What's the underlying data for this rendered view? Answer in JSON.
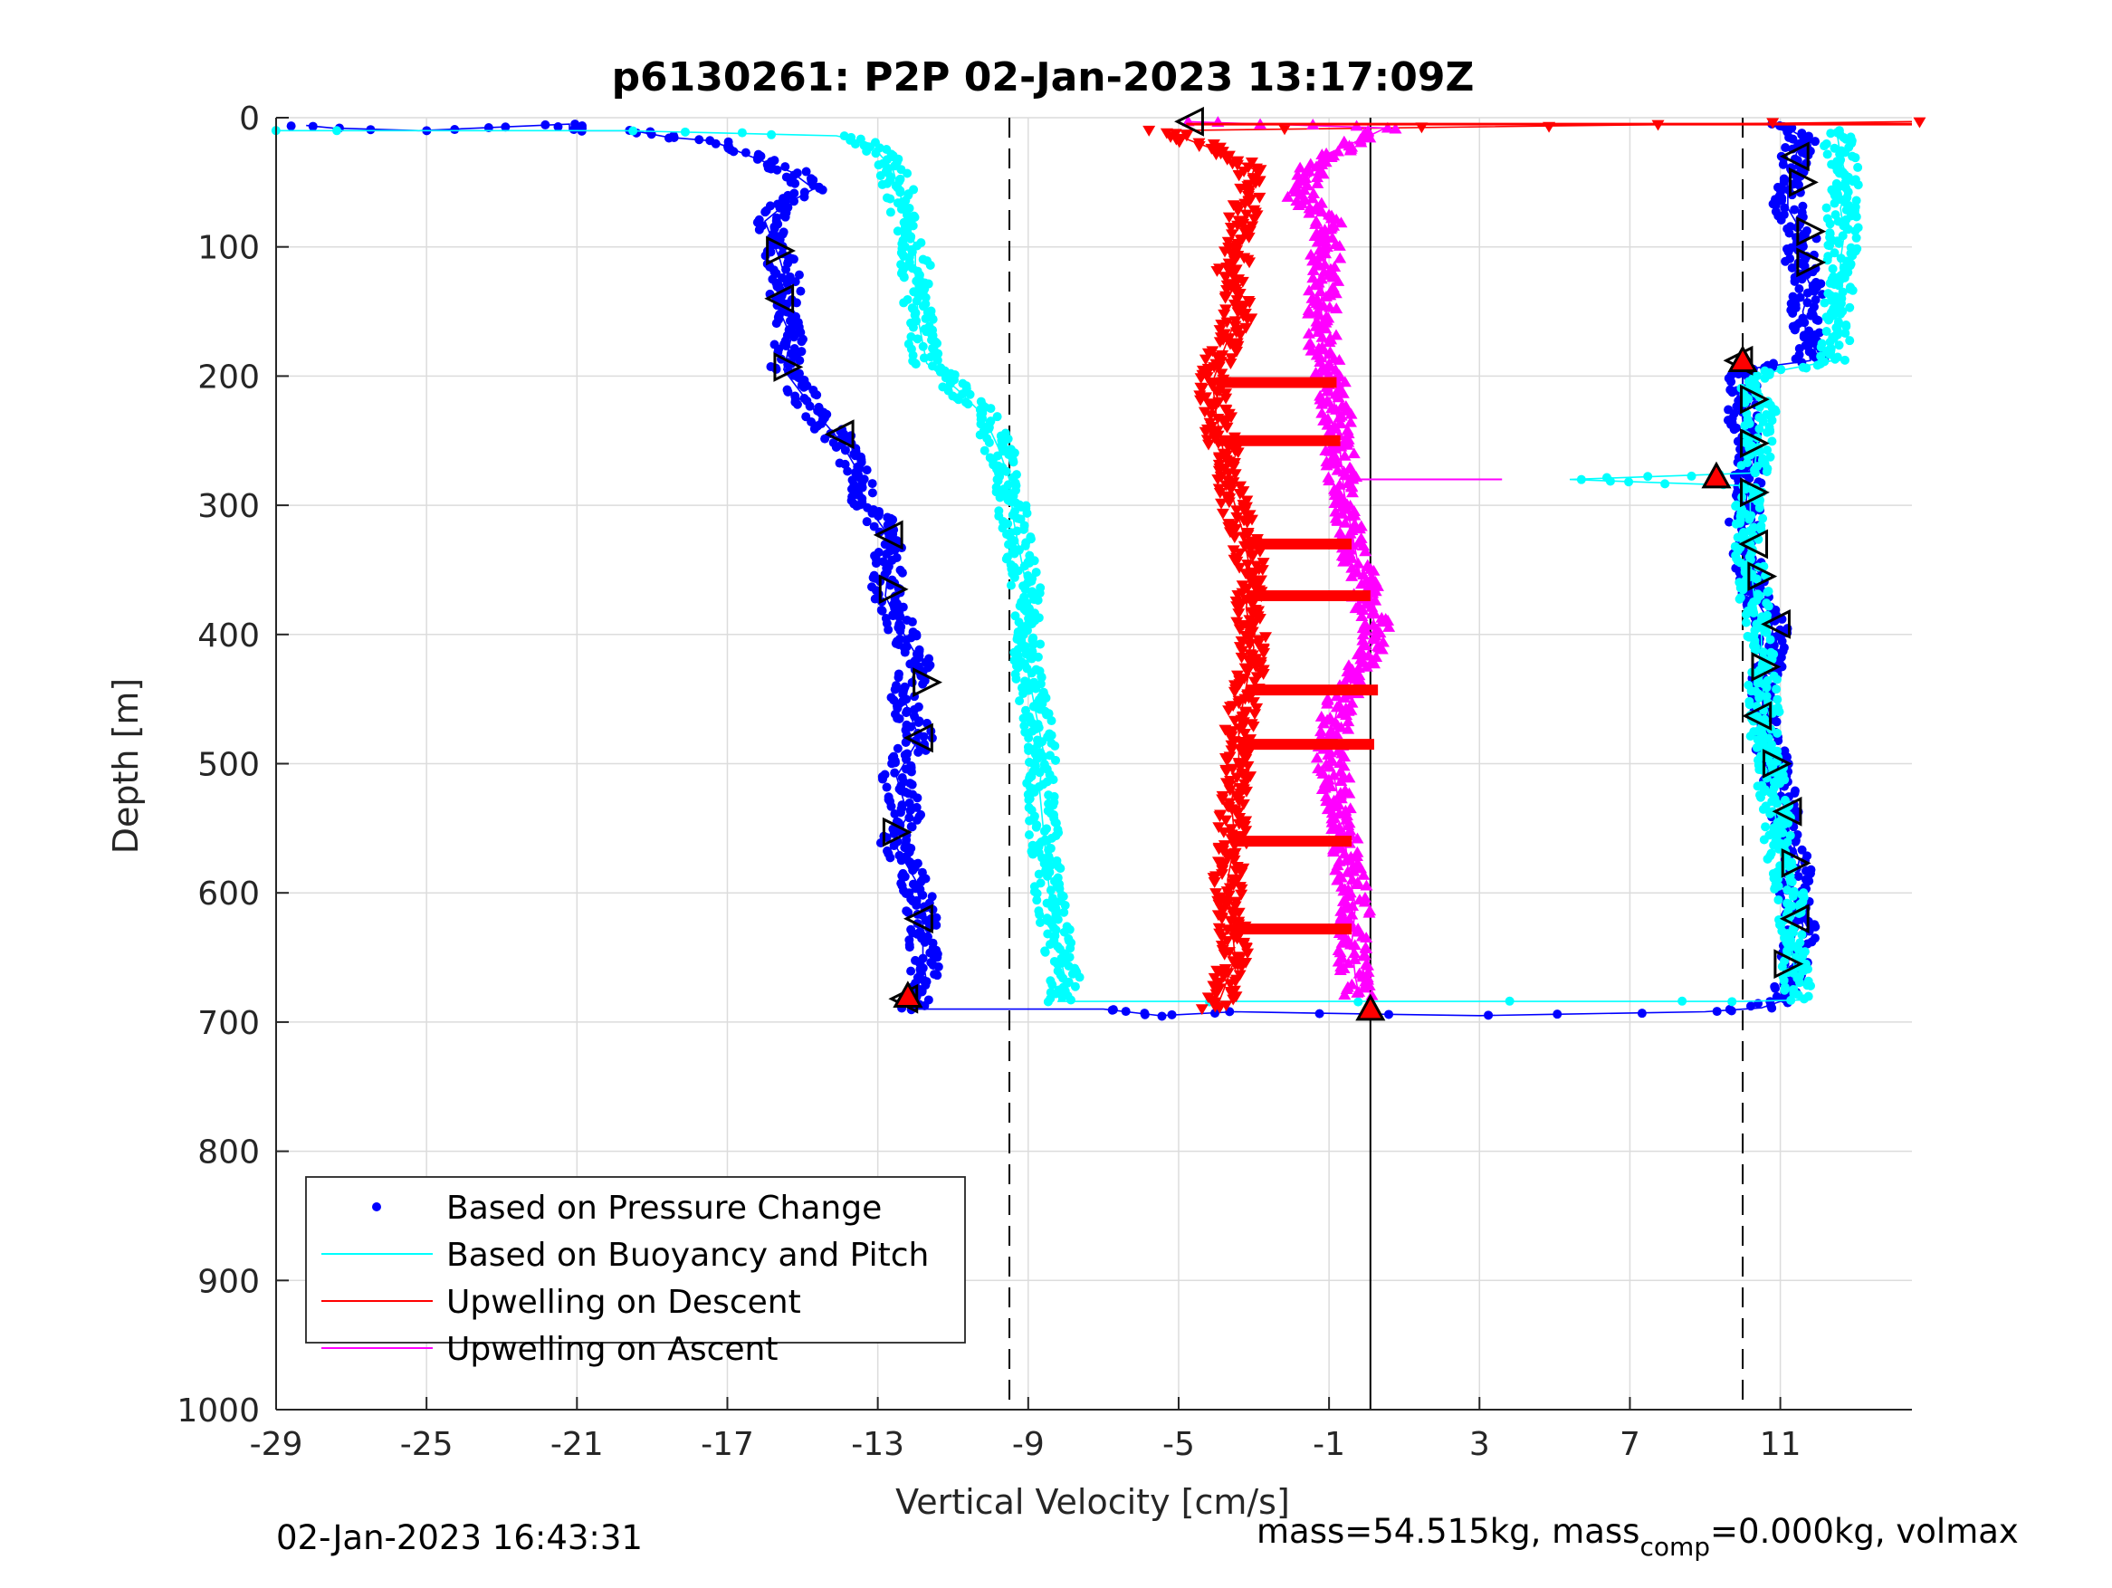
{
  "chart_data": {
    "type": "scatter",
    "title": "p6130261: P2P 02-Jan-2023 13:17:09Z",
    "xlabel": "Vertical Velocity [cm/s]",
    "ylabel": "Depth [m]",
    "xlim": [
      -29,
      14.5
    ],
    "ylim": [
      0,
      1000
    ],
    "y_reversed": true,
    "grid": true,
    "xticks": [
      "-29",
      "-25",
      "-21",
      "-17",
      "-13",
      "-9",
      "-5",
      "-1",
      "3",
      "7",
      "11"
    ],
    "yticks": [
      "0",
      "100",
      "200",
      "300",
      "400",
      "500",
      "600",
      "700",
      "800",
      "900",
      "1000"
    ],
    "legend_position": "bottom-left",
    "legend": [
      {
        "label": "Based on Pressure Change",
        "color": "#0000ff",
        "style": "dot"
      },
      {
        "label": "Based on Buoyancy and Pitch",
        "color": "#00ffff",
        "style": "line"
      },
      {
        "label": "Upwelling on Descent",
        "color": "#ff0000",
        "style": "line"
      },
      {
        "label": "Upwelling on Ascent",
        "color": "#ff00ff",
        "style": "line"
      }
    ],
    "reference_lines": {
      "dashed_x": [
        -9.5,
        10
      ],
      "solid_x": [
        0.1
      ]
    },
    "series": [
      {
        "name": "Based on Pressure Change",
        "color": "#0000ff",
        "points": [
          [
            -28.2,
            6
          ],
          [
            -27.5,
            8
          ],
          [
            -25.2,
            10
          ],
          [
            -21.2,
            5
          ],
          [
            -21.2,
            10
          ],
          [
            -19.5,
            10
          ],
          [
            -18.6,
            15
          ],
          [
            -17.4,
            18
          ],
          [
            -16.8,
            25
          ],
          [
            -16.2,
            32
          ],
          [
            -15.3,
            42
          ],
          [
            -14.7,
            55
          ],
          [
            -15.5,
            68
          ],
          [
            -16.0,
            80
          ],
          [
            -15.8,
            95
          ],
          [
            -15.6,
            110
          ],
          [
            -15.4,
            130
          ],
          [
            -15.6,
            150
          ],
          [
            -15.3,
            170
          ],
          [
            -15.5,
            195
          ],
          [
            -14.6,
            230
          ],
          [
            -14.0,
            250
          ],
          [
            -13.6,
            270
          ],
          [
            -13.4,
            295
          ],
          [
            -12.8,
            320
          ],
          [
            -12.7,
            345
          ],
          [
            -12.8,
            370
          ],
          [
            -12.4,
            395
          ],
          [
            -11.9,
            420
          ],
          [
            -12.3,
            450
          ],
          [
            -11.9,
            480
          ],
          [
            -12.5,
            510
          ],
          [
            -12.2,
            540
          ],
          [
            -12.6,
            560
          ],
          [
            -12.0,
            590
          ],
          [
            -11.8,
            620
          ],
          [
            -11.8,
            650
          ],
          [
            -11.7,
            670
          ],
          [
            -12.2,
            690
          ],
          [
            -7.0,
            690
          ],
          [
            -5.5,
            695
          ],
          [
            -3.5,
            692
          ],
          [
            -1.5,
            693
          ],
          [
            0.5,
            694
          ],
          [
            3.0,
            695
          ],
          [
            5.0,
            694
          ],
          [
            7.0,
            693
          ],
          [
            9.0,
            692
          ],
          [
            10.5,
            689
          ],
          [
            11.0,
            684
          ],
          [
            11.2,
            670
          ],
          [
            11.4,
            650
          ],
          [
            11.6,
            625
          ],
          [
            11.3,
            600
          ],
          [
            11.5,
            575
          ],
          [
            11.2,
            550
          ],
          [
            11.0,
            520
          ],
          [
            10.8,
            495
          ],
          [
            10.6,
            470
          ],
          [
            10.5,
            445
          ],
          [
            10.7,
            420
          ],
          [
            10.8,
            395
          ],
          [
            10.3,
            370
          ],
          [
            10.2,
            345
          ],
          [
            10.0,
            320
          ],
          [
            10.1,
            295
          ],
          [
            10.2,
            270
          ],
          [
            10.0,
            245
          ],
          [
            10.0,
            220
          ],
          [
            10.0,
            195
          ],
          [
            11.8,
            188
          ],
          [
            11.7,
            170
          ],
          [
            11.6,
            150
          ],
          [
            11.8,
            130
          ],
          [
            11.5,
            110
          ],
          [
            11.6,
            90
          ],
          [
            11.2,
            70
          ],
          [
            11.2,
            50
          ],
          [
            11.4,
            30
          ],
          [
            11.6,
            15
          ],
          [
            11.0,
            5
          ]
        ]
      },
      {
        "name": "Based on Buoyancy and Pitch",
        "color": "#00ffff",
        "points": [
          [
            -29.0,
            10
          ],
          [
            -27.7,
            10
          ],
          [
            -19.8,
            10
          ],
          [
            -17.0,
            12
          ],
          [
            -14.1,
            14
          ],
          [
            -13.2,
            20
          ],
          [
            -12.6,
            40
          ],
          [
            -12.3,
            70
          ],
          [
            -12.0,
            100
          ],
          [
            -12.0,
            130
          ],
          [
            -11.9,
            160
          ],
          [
            -11.7,
            190
          ],
          [
            -10.9,
            210
          ],
          [
            -10.2,
            230
          ],
          [
            -9.8,
            255
          ],
          [
            -9.5,
            280
          ],
          [
            -9.4,
            310
          ],
          [
            -9.2,
            340
          ],
          [
            -9.0,
            370
          ],
          [
            -9.1,
            400
          ],
          [
            -9.0,
            430
          ],
          [
            -8.8,
            460
          ],
          [
            -8.6,
            490
          ],
          [
            -8.7,
            520
          ],
          [
            -8.6,
            550
          ],
          [
            -8.5,
            580
          ],
          [
            -8.4,
            610
          ],
          [
            -8.2,
            640
          ],
          [
            -8.0,
            670
          ],
          [
            -8.2,
            684
          ],
          [
            -4.0,
            684
          ],
          [
            0.0,
            684
          ],
          [
            4.0,
            684
          ],
          [
            8.0,
            684
          ],
          [
            10.0,
            684
          ],
          [
            11.5,
            683
          ],
          [
            11.4,
            665
          ],
          [
            11.3,
            640
          ],
          [
            11.3,
            610
          ],
          [
            11.1,
            580
          ],
          [
            10.9,
            550
          ],
          [
            10.8,
            520
          ],
          [
            10.6,
            490
          ],
          [
            10.6,
            460
          ],
          [
            10.5,
            430
          ],
          [
            10.5,
            400
          ],
          [
            10.3,
            370
          ],
          [
            10.2,
            340
          ],
          [
            10.2,
            310
          ],
          [
            10.2,
            285
          ],
          [
            5.4,
            280
          ],
          [
            10.3,
            275
          ],
          [
            10.4,
            250
          ],
          [
            10.5,
            225
          ],
          [
            10.2,
            200
          ],
          [
            12.4,
            188
          ],
          [
            12.5,
            170
          ],
          [
            12.5,
            150
          ],
          [
            12.6,
            130
          ],
          [
            12.6,
            110
          ],
          [
            12.7,
            90
          ],
          [
            12.6,
            70
          ],
          [
            12.8,
            50
          ],
          [
            12.6,
            30
          ],
          [
            12.5,
            10
          ]
        ]
      },
      {
        "name": "Upwelling on Descent",
        "color": "#ff0000",
        "points": [
          [
            14.5,
            3
          ],
          [
            -5.4,
            10
          ],
          [
            -4.0,
            25
          ],
          [
            -3.0,
            40
          ],
          [
            -3.2,
            60
          ],
          [
            -3.3,
            90
          ],
          [
            -3.6,
            120
          ],
          [
            -3.4,
            150
          ],
          [
            -3.8,
            180
          ],
          [
            -4.1,
            205
          ],
          [
            -4.0,
            230
          ],
          [
            -3.8,
            260
          ],
          [
            -3.6,
            290
          ],
          [
            -3.3,
            320
          ],
          [
            -3.1,
            350
          ],
          [
            -3.2,
            380
          ],
          [
            -3.0,
            410
          ],
          [
            -3.2,
            440
          ],
          [
            -3.4,
            470
          ],
          [
            -3.4,
            500
          ],
          [
            -3.6,
            530
          ],
          [
            -3.5,
            560
          ],
          [
            -3.7,
            590
          ],
          [
            -3.6,
            620
          ],
          [
            -3.5,
            650
          ],
          [
            -3.8,
            675
          ],
          [
            -4.0,
            690
          ]
        ]
      },
      {
        "name": "Upwelling on Ascent",
        "color": "#ff00ff",
        "points": [
          [
            -4.8,
            3
          ],
          [
            0.5,
            8
          ],
          [
            0.0,
            15
          ],
          [
            -1.2,
            30
          ],
          [
            -1.5,
            45
          ],
          [
            -1.8,
            60
          ],
          [
            -1.0,
            80
          ],
          [
            -1.1,
            110
          ],
          [
            -1.2,
            140
          ],
          [
            -1.2,
            170
          ],
          [
            -1.0,
            200
          ],
          [
            -0.8,
            230
          ],
          [
            -0.7,
            260
          ],
          [
            -0.6,
            290
          ],
          [
            -0.4,
            320
          ],
          [
            -0.2,
            350
          ],
          [
            0.1,
            380
          ],
          [
            0.3,
            400
          ],
          [
            -0.3,
            430
          ],
          [
            -0.8,
            460
          ],
          [
            -1.0,
            490
          ],
          [
            -0.8,
            520
          ],
          [
            -0.6,
            550
          ],
          [
            -0.5,
            580
          ],
          [
            -0.3,
            610
          ],
          [
            -0.4,
            640
          ],
          [
            -0.3,
            665
          ],
          [
            -0.2,
            680
          ]
        ]
      }
    ],
    "horizontal_segments": [
      {
        "color": "#ff0000",
        "y": 205,
        "x0": -4.0,
        "x1": -0.8
      },
      {
        "color": "#ff0000",
        "y": 250,
        "x0": -3.9,
        "x1": -0.7
      },
      {
        "color": "#ff0000",
        "y": 330,
        "x0": -3.3,
        "x1": -0.4
      },
      {
        "color": "#ff0000",
        "y": 370,
        "x0": -3.2,
        "x1": 0.1
      },
      {
        "color": "#ff0000",
        "y": 443,
        "x0": -3.2,
        "x1": 0.3
      },
      {
        "color": "#ff0000",
        "y": 485,
        "x0": -3.4,
        "x1": 0.2
      },
      {
        "color": "#ff0000",
        "y": 560,
        "x0": -3.5,
        "x1": -0.4
      },
      {
        "color": "#ff0000",
        "y": 628,
        "x0": -3.6,
        "x1": -0.4
      },
      {
        "color": "#ff0000",
        "y": 5,
        "x0": -4.8,
        "x1": 14.5
      },
      {
        "color": "#ff00ff",
        "y": 280,
        "x0": -0.6,
        "x1": 3.6
      }
    ],
    "markers": [
      {
        "x": -15.6,
        "y": 103,
        "dir": "right"
      },
      {
        "x": -15.6,
        "y": 140,
        "dir": "left"
      },
      {
        "x": -15.4,
        "y": 193,
        "dir": "right"
      },
      {
        "x": -14.0,
        "y": 245,
        "dir": "left"
      },
      {
        "x": -12.7,
        "y": 323,
        "dir": "left"
      },
      {
        "x": -12.6,
        "y": 365,
        "dir": "right"
      },
      {
        "x": -11.7,
        "y": 437,
        "dir": "right"
      },
      {
        "x": -11.9,
        "y": 480,
        "dir": "left"
      },
      {
        "x": -12.5,
        "y": 553,
        "dir": "right"
      },
      {
        "x": -11.9,
        "y": 620,
        "dir": "left"
      },
      {
        "x": -4.7,
        "y": 3,
        "dir": "left"
      },
      {
        "x": 11.4,
        "y": 30,
        "dir": "left"
      },
      {
        "x": 11.6,
        "y": 50,
        "dir": "right"
      },
      {
        "x": 11.8,
        "y": 88,
        "dir": "right"
      },
      {
        "x": 11.8,
        "y": 112,
        "dir": "right"
      },
      {
        "x": 10.3,
        "y": 218,
        "dir": "right"
      },
      {
        "x": 10.3,
        "y": 252,
        "dir": "right"
      },
      {
        "x": 10.3,
        "y": 290,
        "dir": "right"
      },
      {
        "x": 10.3,
        "y": 330,
        "dir": "left"
      },
      {
        "x": 10.5,
        "y": 355,
        "dir": "right"
      },
      {
        "x": 10.9,
        "y": 392,
        "dir": "left"
      },
      {
        "x": 10.6,
        "y": 425,
        "dir": "right"
      },
      {
        "x": 10.4,
        "y": 463,
        "dir": "left"
      },
      {
        "x": 10.9,
        "y": 500,
        "dir": "right"
      },
      {
        "x": 11.2,
        "y": 537,
        "dir": "left"
      },
      {
        "x": 11.4,
        "y": 577,
        "dir": "right"
      },
      {
        "x": 11.4,
        "y": 620,
        "dir": "left"
      },
      {
        "x": 11.2,
        "y": 655,
        "dir": "right"
      },
      {
        "x": 9.9,
        "y": 188,
        "dir": "left"
      },
      {
        "x": -12.3,
        "y": 682,
        "dir": "left"
      },
      {
        "x": 9.3,
        "y": 278,
        "dir": "up",
        "color": "#ff0000"
      },
      {
        "x": 10.0,
        "y": 188,
        "dir": "up",
        "color": "#ff0000"
      },
      {
        "x": -12.2,
        "y": 680,
        "dir": "up",
        "color": "#ff0000"
      },
      {
        "x": 0.1,
        "y": 690,
        "dir": "up",
        "color": "#ff0000"
      }
    ]
  },
  "footer": {
    "timestamp": "02-Jan-2023 16:43:31",
    "mass_text": "mass=54.515kg, mass",
    "comp_sub": "comp",
    "rest_text": "=0.000kg, volmax"
  }
}
